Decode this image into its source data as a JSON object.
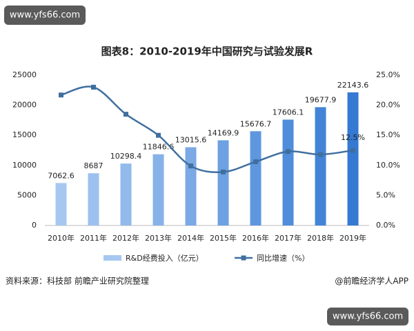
{
  "header": {
    "watermark": "www.yfs66.com"
  },
  "chart_data": {
    "type": "bar",
    "title": "图表8：2010-2019年中国研究与试验发展R",
    "categories": [
      "2010年",
      "2011年",
      "2012年",
      "2013年",
      "2014年",
      "2015年",
      "2016年",
      "2017年",
      "2018年",
      "2019年"
    ],
    "series": [
      {
        "name": "R&D经费投入（亿元）",
        "type": "bar",
        "color": "#3d86d8",
        "colors": [
          "#a6c8f0",
          "#9cc1ee",
          "#92baeb",
          "#86b2e8",
          "#7aa9e5",
          "#6ea1e2",
          "#5f97df",
          "#508ddb",
          "#4384d8",
          "#3579d3"
        ],
        "values": [
          7062.6,
          8687,
          10298.4,
          11846.6,
          13015.6,
          14169.9,
          15676.7,
          17606.1,
          19677.9,
          22143.6
        ]
      },
      {
        "name": "同比增速（%）",
        "type": "line",
        "axis": "y2",
        "color": "#3f6f9f",
        "values": [
          21.7,
          23.0,
          18.5,
          15.0,
          9.9,
          8.9,
          10.6,
          12.3,
          11.8,
          12.5
        ],
        "value_labels": [
          null,
          null,
          null,
          null,
          null,
          null,
          null,
          null,
          null,
          "12.5%"
        ]
      }
    ],
    "ylim": [
      0,
      25000
    ],
    "yticks": [
      0,
      5000,
      10000,
      15000,
      20000,
      25000
    ],
    "y2lim": [
      0,
      25
    ],
    "y2ticks": [
      {
        "value": 0,
        "label": "0.0%"
      },
      {
        "value": 5,
        "label": "5.0%"
      },
      {
        "value": 10,
        "label": "10.0%"
      },
      {
        "value": 15,
        "label": "15.0%"
      },
      {
        "value": 20,
        "label": "20.0%"
      },
      {
        "value": 25,
        "label": "25.0%"
      }
    ],
    "grid": false,
    "legend": "bottom"
  },
  "footer": {
    "source": "资料来源：科技部 前瞻产业研究院整理",
    "brand": "@前瞻经济学人APP",
    "watermark": "www.yfs66.com"
  }
}
